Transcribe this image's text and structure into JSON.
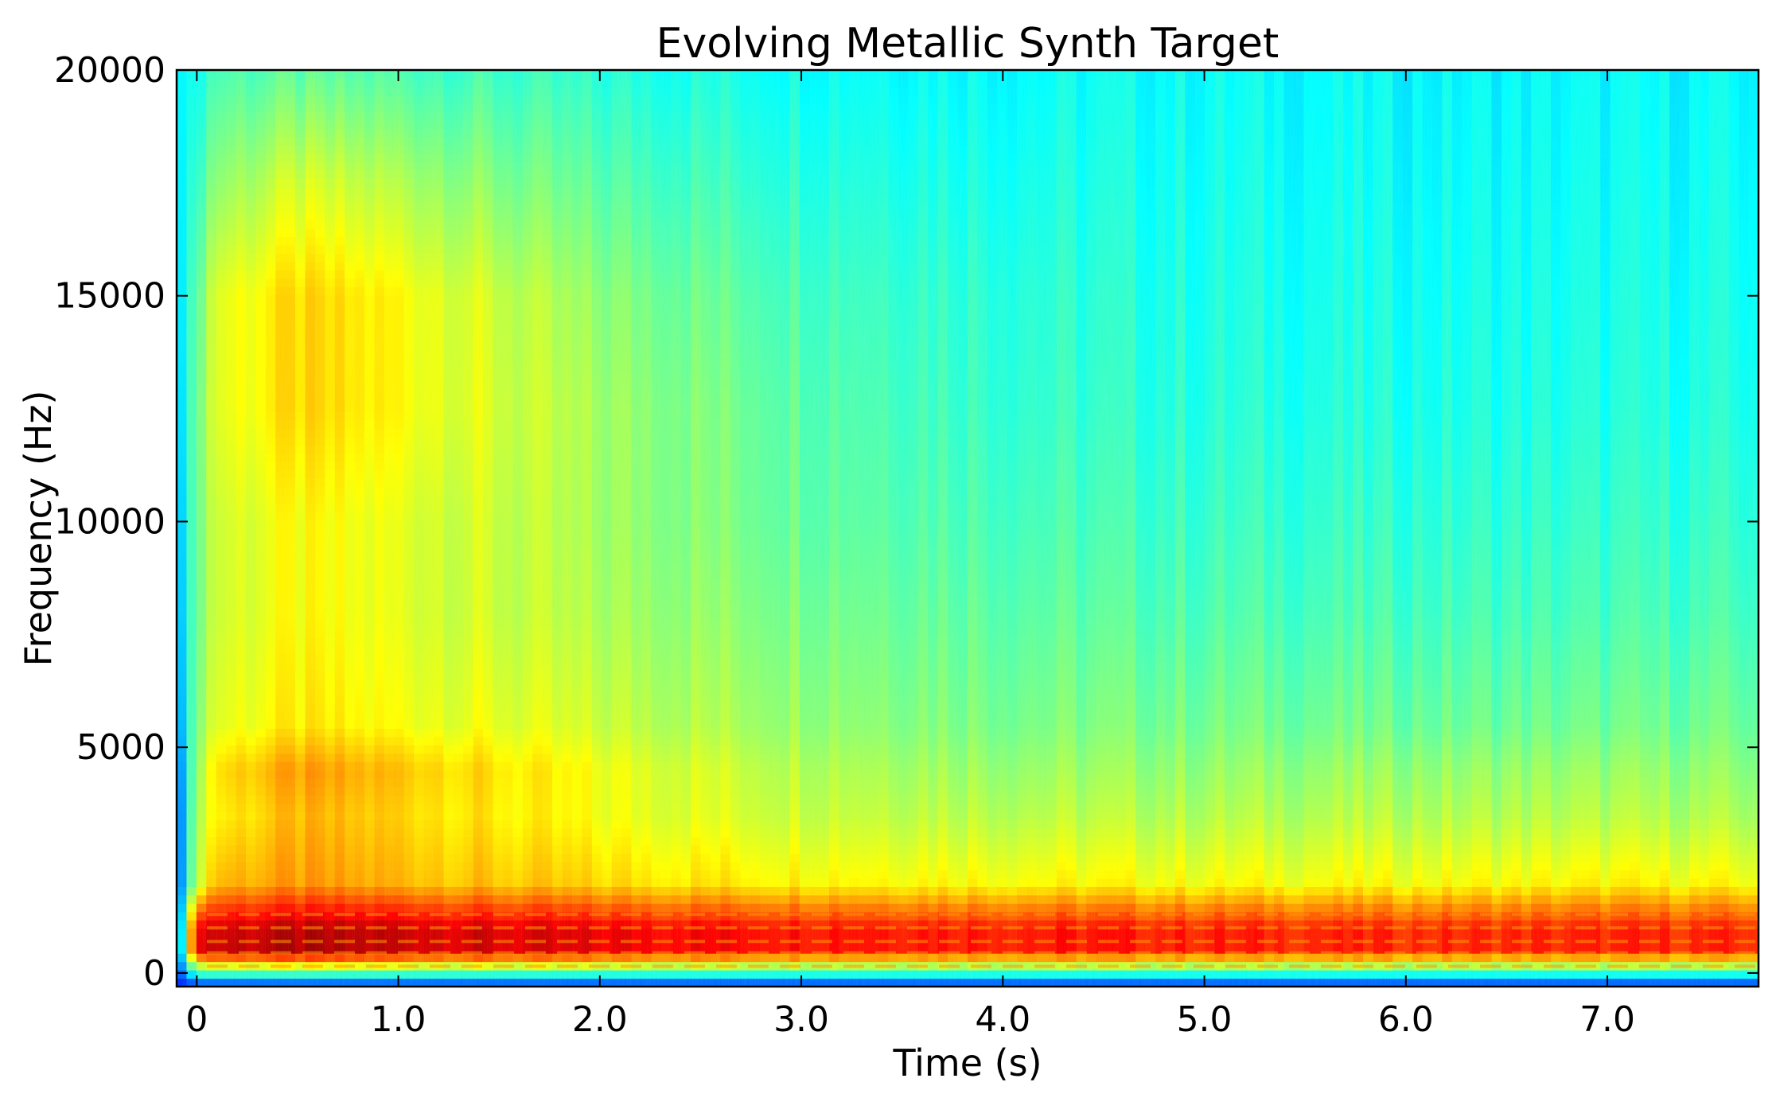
{
  "chart_data": {
    "type": "heatmap",
    "title": "Evolving Metallic Synth Target",
    "xlabel": "Time (s)",
    "ylabel": "Frequency (Hz)",
    "xlim": [
      -0.1,
      7.75
    ],
    "ylim": [
      -300,
      20000
    ],
    "x_ticks": [
      {
        "value": 0,
        "label": "0"
      },
      {
        "value": 1.0,
        "label": "1.0"
      },
      {
        "value": 2.0,
        "label": "2.0"
      },
      {
        "value": 3.0,
        "label": "3.0"
      },
      {
        "value": 4.0,
        "label": "4.0"
      },
      {
        "value": 5.0,
        "label": "5.0"
      },
      {
        "value": 6.0,
        "label": "6.0"
      },
      {
        "value": 7.0,
        "label": "7.0"
      }
    ],
    "y_ticks": [
      {
        "value": 0,
        "label": "0"
      },
      {
        "value": 5000,
        "label": "5000"
      },
      {
        "value": 10000,
        "label": "10000"
      },
      {
        "value": 15000,
        "label": "15000"
      },
      {
        "value": 20000,
        "label": "20000"
      }
    ],
    "colormap": "jet",
    "grid": false,
    "legend": "none",
    "time_samples_s": [
      -0.1,
      0.0,
      0.1,
      0.5,
      1.0,
      1.5,
      2.0,
      3.0,
      4.0,
      5.0,
      6.0,
      7.0,
      7.75
    ],
    "freq_samples_hz": [
      -300,
      500,
      1000,
      2000,
      3500,
      4500,
      5500,
      8000,
      10000,
      12500,
      15000,
      17500,
      20000
    ],
    "intensity": [
      [
        0.15,
        0.15,
        0.15,
        0.15,
        0.15,
        0.15,
        0.15,
        0.15,
        0.15,
        0.15,
        0.15,
        0.15,
        0.15
      ],
      [
        0.18,
        0.92,
        0.93,
        0.95,
        0.93,
        0.91,
        0.89,
        0.87,
        0.86,
        0.85,
        0.84,
        0.84,
        0.84
      ],
      [
        0.18,
        0.91,
        0.92,
        0.94,
        0.93,
        0.91,
        0.89,
        0.87,
        0.86,
        0.85,
        0.84,
        0.84,
        0.84
      ],
      [
        0.18,
        0.58,
        0.7,
        0.72,
        0.7,
        0.68,
        0.66,
        0.64,
        0.63,
        0.62,
        0.62,
        0.63,
        0.62
      ],
      [
        0.18,
        0.56,
        0.64,
        0.69,
        0.67,
        0.64,
        0.61,
        0.58,
        0.56,
        0.55,
        0.55,
        0.55,
        0.54
      ],
      [
        0.2,
        0.54,
        0.66,
        0.72,
        0.69,
        0.65,
        0.61,
        0.56,
        0.53,
        0.52,
        0.52,
        0.52,
        0.51
      ],
      [
        0.24,
        0.52,
        0.6,
        0.64,
        0.62,
        0.6,
        0.57,
        0.53,
        0.5,
        0.49,
        0.48,
        0.48,
        0.48
      ],
      [
        0.27,
        0.5,
        0.58,
        0.62,
        0.6,
        0.57,
        0.54,
        0.5,
        0.47,
        0.45,
        0.44,
        0.44,
        0.44
      ],
      [
        0.28,
        0.5,
        0.58,
        0.62,
        0.6,
        0.57,
        0.53,
        0.48,
        0.45,
        0.43,
        0.42,
        0.42,
        0.42
      ],
      [
        0.3,
        0.5,
        0.6,
        0.66,
        0.63,
        0.58,
        0.53,
        0.47,
        0.43,
        0.41,
        0.4,
        0.4,
        0.4
      ],
      [
        0.32,
        0.48,
        0.6,
        0.66,
        0.63,
        0.57,
        0.51,
        0.45,
        0.42,
        0.4,
        0.39,
        0.39,
        0.39
      ],
      [
        0.34,
        0.44,
        0.52,
        0.58,
        0.55,
        0.5,
        0.46,
        0.42,
        0.4,
        0.39,
        0.38,
        0.38,
        0.38
      ],
      [
        0.36,
        0.4,
        0.45,
        0.46,
        0.45,
        0.43,
        0.41,
        0.39,
        0.38,
        0.38,
        0.37,
        0.37,
        0.37
      ]
    ]
  }
}
